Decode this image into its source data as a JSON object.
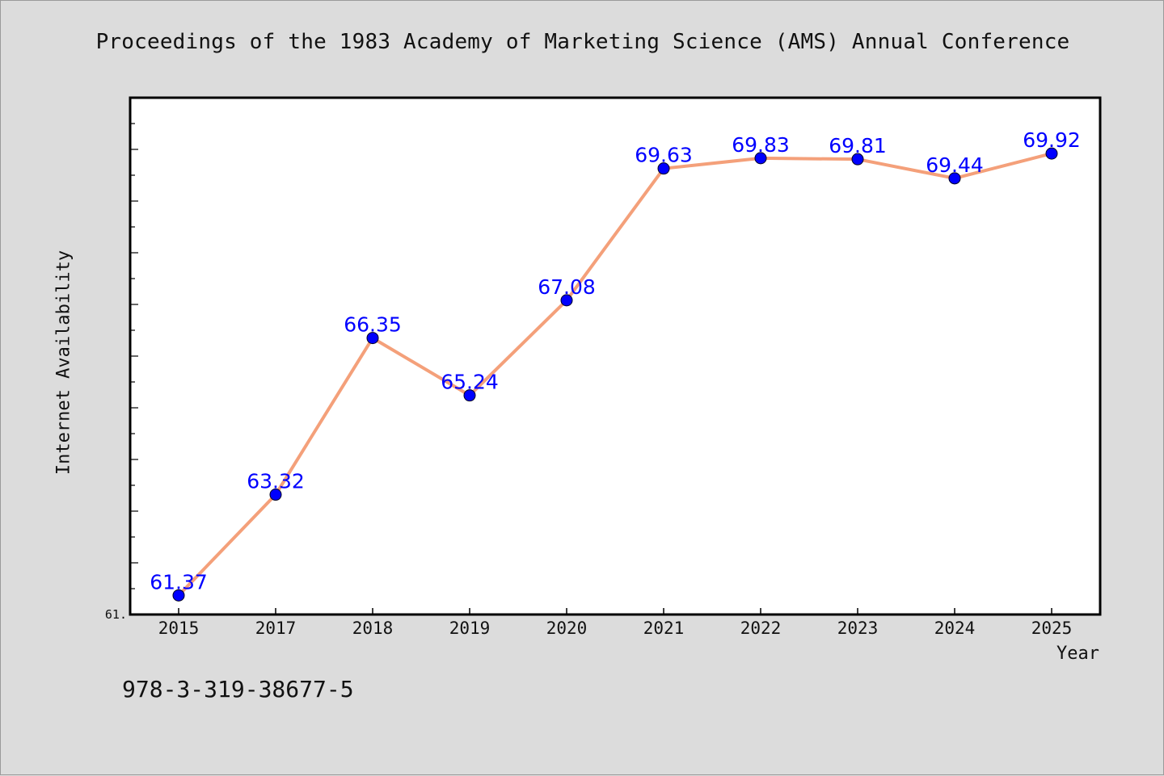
{
  "chart_data": {
    "type": "line",
    "title": "Proceedings of the 1983 Academy of Marketing Science (AMS) Annual Conference",
    "xlabel": "Year",
    "ylabel": "Internet Availability",
    "categories": [
      "2015",
      "2017",
      "2018",
      "2019",
      "2020",
      "2021",
      "2022",
      "2023",
      "2024",
      "2025"
    ],
    "series": [
      {
        "values": [
          61.37,
          63.32,
          66.35,
          65.24,
          67.08,
          69.63,
          69.83,
          69.81,
          69.44,
          69.92
        ],
        "data_labels": [
          "61.37",
          "63.32",
          "66.35",
          "65.24",
          "67.08",
          "69.63",
          "69.83",
          "69.81",
          "69.44",
          "69.92"
        ]
      }
    ],
    "ylim": [
      61.0,
      71.0
    ],
    "y_tick_labels": [
      "61."
    ],
    "grid": false,
    "legend": "none",
    "colors": {
      "line": "#f4a07a",
      "marker": "#0000ff",
      "label": "#0000ff",
      "background": "#dcdcdc",
      "plot_background": "#ffffff"
    }
  },
  "footer": {
    "isbn": "978-3-319-38677-5"
  }
}
